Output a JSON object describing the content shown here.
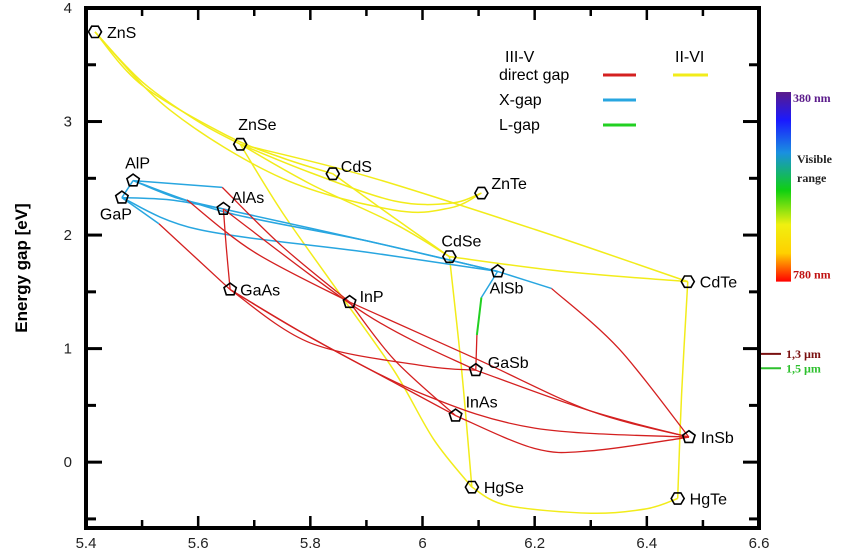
{
  "chart_data": {
    "type": "line",
    "title": "",
    "xlabel": "",
    "ylabel": "Energy gap [eV]",
    "xlim": [
      5.4,
      6.6
    ],
    "ylim": [
      -0.58,
      4
    ],
    "xticks": [
      "5.4",
      "5.6",
      "5.8",
      "6",
      "6.2",
      "6.4",
      "6.6"
    ],
    "xtick_values": [
      5.4,
      5.6,
      5.8,
      6.0,
      6.2,
      6.4,
      6.6
    ],
    "yticks": [
      "0",
      "1",
      "2",
      "3",
      "4"
    ],
    "ytick_values": [
      0,
      1,
      2,
      3,
      4
    ],
    "grid": false,
    "colors": {
      "direct_III_V": "#d42020",
      "direct_II_VI": "#f2ec1a",
      "x_gap": "#28a6e0",
      "l_gap": "#22d022"
    },
    "points": [
      {
        "name": "ZnS",
        "x": 5.416,
        "y": 3.79,
        "group": "II-VI"
      },
      {
        "name": "ZnSe",
        "x": 5.675,
        "y": 2.8,
        "group": "II-VI"
      },
      {
        "name": "CdS",
        "x": 5.84,
        "y": 2.54,
        "group": "II-VI"
      },
      {
        "name": "ZnTe",
        "x": 6.105,
        "y": 2.37,
        "group": "II-VI"
      },
      {
        "name": "CdSe",
        "x": 6.048,
        "y": 1.81,
        "group": "II-VI"
      },
      {
        "name": "CdTe",
        "x": 6.473,
        "y": 1.59,
        "group": "II-VI"
      },
      {
        "name": "HgSe",
        "x": 6.088,
        "y": -0.22,
        "group": "II-VI"
      },
      {
        "name": "HgTe",
        "x": 6.455,
        "y": -0.32,
        "group": "II-VI"
      },
      {
        "name": "AlP",
        "x": 5.484,
        "y": 2.48,
        "group": "III-V"
      },
      {
        "name": "GaP",
        "x": 5.464,
        "y": 2.33,
        "group": "III-V"
      },
      {
        "name": "AlAs",
        "x": 5.645,
        "y": 2.23,
        "group": "III-V"
      },
      {
        "name": "GaAs",
        "x": 5.657,
        "y": 1.52,
        "group": "III-V"
      },
      {
        "name": "InP",
        "x": 5.87,
        "y": 1.41,
        "group": "III-V"
      },
      {
        "name": "AlSb",
        "x": 6.134,
        "y": 1.68,
        "group": "III-V"
      },
      {
        "name": "GaSb",
        "x": 6.095,
        "y": 0.81,
        "group": "III-V"
      },
      {
        "name": "InAs",
        "x": 6.059,
        "y": 0.41,
        "group": "III-V"
      },
      {
        "name": "InSb",
        "x": 6.475,
        "y": 0.22,
        "group": "III-V"
      }
    ],
    "curves": [
      {
        "type": "direct_II_VI",
        "pts": [
          [
            5.416,
            3.79
          ],
          [
            5.5,
            3.35
          ],
          [
            5.6,
            3.0
          ],
          [
            5.675,
            2.8
          ]
        ]
      },
      {
        "type": "direct_II_VI",
        "pts": [
          [
            5.416,
            3.79
          ],
          [
            5.5,
            3.32
          ],
          [
            5.65,
            2.88
          ],
          [
            5.75,
            2.68
          ],
          [
            5.84,
            2.54
          ]
        ]
      },
      {
        "type": "direct_II_VI",
        "pts": [
          [
            5.416,
            3.79
          ],
          [
            5.55,
            3.1
          ],
          [
            5.75,
            2.5
          ],
          [
            5.95,
            2.22
          ],
          [
            6.05,
            2.24
          ],
          [
            6.105,
            2.37
          ]
        ]
      },
      {
        "type": "direct_II_VI",
        "pts": [
          [
            5.675,
            2.8
          ],
          [
            5.8,
            2.55
          ],
          [
            5.95,
            2.3
          ],
          [
            6.05,
            2.28
          ],
          [
            6.105,
            2.37
          ]
        ]
      },
      {
        "type": "direct_II_VI",
        "pts": [
          [
            5.675,
            2.8
          ],
          [
            5.8,
            2.45
          ],
          [
            5.95,
            2.1
          ],
          [
            6.048,
            1.81
          ]
        ]
      },
      {
        "type": "direct_II_VI",
        "pts": [
          [
            5.675,
            2.8
          ],
          [
            5.75,
            2.2
          ],
          [
            5.85,
            1.5
          ],
          [
            5.95,
            0.8
          ],
          [
            6.02,
            0.2
          ],
          [
            6.088,
            -0.22
          ]
        ]
      },
      {
        "type": "direct_II_VI",
        "pts": [
          [
            5.84,
            2.54
          ],
          [
            5.95,
            2.15
          ],
          [
            6.048,
            1.81
          ]
        ]
      },
      {
        "type": "direct_II_VI",
        "pts": [
          [
            5.675,
            2.8
          ],
          [
            5.9,
            2.52
          ],
          [
            6.2,
            2.05
          ],
          [
            6.473,
            1.59
          ]
        ]
      },
      {
        "type": "direct_II_VI",
        "pts": [
          [
            6.048,
            1.81
          ],
          [
            6.25,
            1.68
          ],
          [
            6.473,
            1.59
          ]
        ]
      },
      {
        "type": "direct_II_VI",
        "pts": [
          [
            6.048,
            1.81
          ],
          [
            6.07,
            0.8
          ],
          [
            6.088,
            -0.22
          ]
        ]
      },
      {
        "type": "direct_II_VI",
        "pts": [
          [
            6.088,
            -0.22
          ],
          [
            6.15,
            -0.38
          ],
          [
            6.3,
            -0.45
          ],
          [
            6.4,
            -0.41
          ],
          [
            6.455,
            -0.32
          ]
        ]
      },
      {
        "type": "direct_II_VI",
        "pts": [
          [
            6.455,
            -0.32
          ],
          [
            6.462,
            0.6
          ],
          [
            6.473,
            1.59
          ]
        ]
      },
      {
        "type": "x_gap",
        "pts": [
          [
            5.484,
            2.48
          ],
          [
            5.643,
            2.42
          ]
        ]
      },
      {
        "type": "x_gap",
        "pts": [
          [
            5.484,
            2.48
          ],
          [
            5.56,
            2.33
          ],
          [
            5.645,
            2.23
          ]
        ]
      },
      {
        "type": "x_gap",
        "pts": [
          [
            5.484,
            2.48
          ],
          [
            5.65,
            2.2
          ],
          [
            5.9,
            1.95
          ],
          [
            6.134,
            1.68
          ]
        ]
      },
      {
        "type": "x_gap",
        "pts": [
          [
            5.464,
            2.33
          ],
          [
            5.55,
            2.31
          ],
          [
            5.645,
            2.23
          ]
        ]
      },
      {
        "type": "x_gap",
        "pts": [
          [
            5.464,
            2.33
          ],
          [
            5.6,
            2.05
          ],
          [
            5.9,
            1.85
          ],
          [
            6.134,
            1.68
          ]
        ]
      },
      {
        "type": "x_gap",
        "pts": [
          [
            5.645,
            2.23
          ],
          [
            5.9,
            1.95
          ],
          [
            6.134,
            1.68
          ]
        ]
      },
      {
        "type": "x_gap",
        "pts": [
          [
            5.464,
            2.33
          ],
          [
            5.484,
            2.48
          ]
        ]
      },
      {
        "type": "x_gap",
        "pts": [
          [
            5.464,
            2.33
          ],
          [
            5.53,
            2.1
          ]
        ]
      },
      {
        "type": "x_gap",
        "pts": [
          [
            6.134,
            1.68
          ],
          [
            6.23,
            1.53
          ]
        ]
      },
      {
        "type": "x_gap",
        "pts": [
          [
            6.134,
            1.68
          ],
          [
            6.105,
            1.45
          ]
        ]
      },
      {
        "type": "l_gap",
        "pts": [
          [
            6.105,
            1.45
          ],
          [
            6.097,
            1.12
          ]
        ]
      },
      {
        "type": "direct_III_V",
        "pts": [
          [
            6.097,
            1.12
          ],
          [
            6.095,
            0.81
          ]
        ]
      },
      {
        "type": "direct_III_V",
        "pts": [
          [
            6.23,
            1.53
          ],
          [
            6.35,
            1.0
          ],
          [
            6.475,
            0.22
          ]
        ]
      },
      {
        "type": "direct_III_V",
        "pts": [
          [
            5.53,
            2.1
          ],
          [
            5.657,
            1.52
          ]
        ]
      },
      {
        "type": "direct_III_V",
        "pts": [
          [
            5.645,
            2.23
          ],
          [
            5.65,
            1.9
          ],
          [
            5.657,
            1.52
          ]
        ]
      },
      {
        "type": "direct_III_V",
        "pts": [
          [
            5.657,
            1.52
          ],
          [
            5.8,
            1.1
          ],
          [
            5.95,
            0.7
          ],
          [
            6.059,
            0.41
          ]
        ]
      },
      {
        "type": "direct_III_V",
        "pts": [
          [
            5.657,
            1.52
          ],
          [
            5.8,
            1.05
          ],
          [
            6.0,
            0.85
          ],
          [
            6.095,
            0.81
          ]
        ]
      },
      {
        "type": "direct_III_V",
        "pts": [
          [
            5.657,
            1.52
          ],
          [
            5.8,
            1.1
          ],
          [
            6.0,
            0.6
          ],
          [
            6.2,
            0.3
          ],
          [
            6.475,
            0.22
          ]
        ]
      },
      {
        "type": "direct_III_V",
        "pts": [
          [
            5.87,
            1.41
          ],
          [
            5.95,
            0.9
          ],
          [
            6.059,
            0.41
          ]
        ]
      },
      {
        "type": "direct_III_V",
        "pts": [
          [
            5.87,
            1.41
          ],
          [
            6.1,
            0.9
          ],
          [
            6.3,
            0.45
          ],
          [
            6.475,
            0.22
          ]
        ]
      },
      {
        "type": "direct_III_V",
        "pts": [
          [
            5.643,
            2.42
          ],
          [
            5.75,
            1.9
          ],
          [
            5.87,
            1.41
          ]
        ]
      },
      {
        "type": "direct_III_V",
        "pts": [
          [
            5.58,
            2.31
          ],
          [
            5.7,
            1.85
          ],
          [
            5.87,
            1.41
          ]
        ]
      },
      {
        "type": "direct_III_V",
        "pts": [
          [
            5.645,
            2.23
          ],
          [
            5.9,
            1.3
          ],
          [
            6.095,
            0.81
          ]
        ]
      },
      {
        "type": "direct_III_V",
        "pts": [
          [
            6.095,
            0.81
          ],
          [
            6.3,
            0.45
          ],
          [
            6.475,
            0.22
          ]
        ]
      },
      {
        "type": "direct_III_V",
        "pts": [
          [
            6.059,
            0.41
          ],
          [
            6.2,
            0.12
          ],
          [
            6.3,
            0.1
          ],
          [
            6.475,
            0.22
          ]
        ]
      }
    ],
    "legend": {
      "placement": "top-right",
      "columns": [
        "III-V",
        "II-VI"
      ],
      "rows": [
        {
          "label": "direct gap",
          "III-V": "direct_III_V",
          "II-VI": "direct_II_VI"
        },
        {
          "label": "X-gap",
          "III-V": "x_gap"
        },
        {
          "label": "L-gap",
          "III-V": "l_gap"
        }
      ]
    },
    "colorbar": {
      "top_label": "380 nm",
      "bottom_label": "780 nm",
      "middle_label_1": "Visible",
      "middle_label_2": "range",
      "top_energy_ev": 3.26,
      "bottom_energy_ev": 1.59
    },
    "markers_right": [
      {
        "label": "1,3 µm",
        "energy_ev": 0.954,
        "color": "#7a1010"
      },
      {
        "label": "1,5 µm",
        "energy_ev": 0.827,
        "color": "#2ec02e"
      }
    ]
  }
}
